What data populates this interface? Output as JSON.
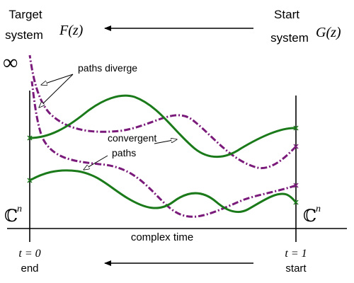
{
  "labels": {
    "target_line1": "Target",
    "target_line2": "system",
    "target_fn": "F(z)",
    "start_line1": "Start",
    "start_line2": "system",
    "start_fn": "G(z)",
    "infinity": "∞",
    "paths_diverge": "paths diverge",
    "convergent": "convergent",
    "paths": "paths",
    "cn_left": "ℂ",
    "cn_left_sup": "n",
    "cn_right": "ℂ",
    "cn_right_sup": "n",
    "complex_time": "complex time",
    "t0": "t = 0",
    "end": "end",
    "t1": "t = 1",
    "start": "start"
  },
  "colors": {
    "green": "#1a7a1a",
    "purple": "#7a1a7a",
    "black": "#000000"
  }
}
